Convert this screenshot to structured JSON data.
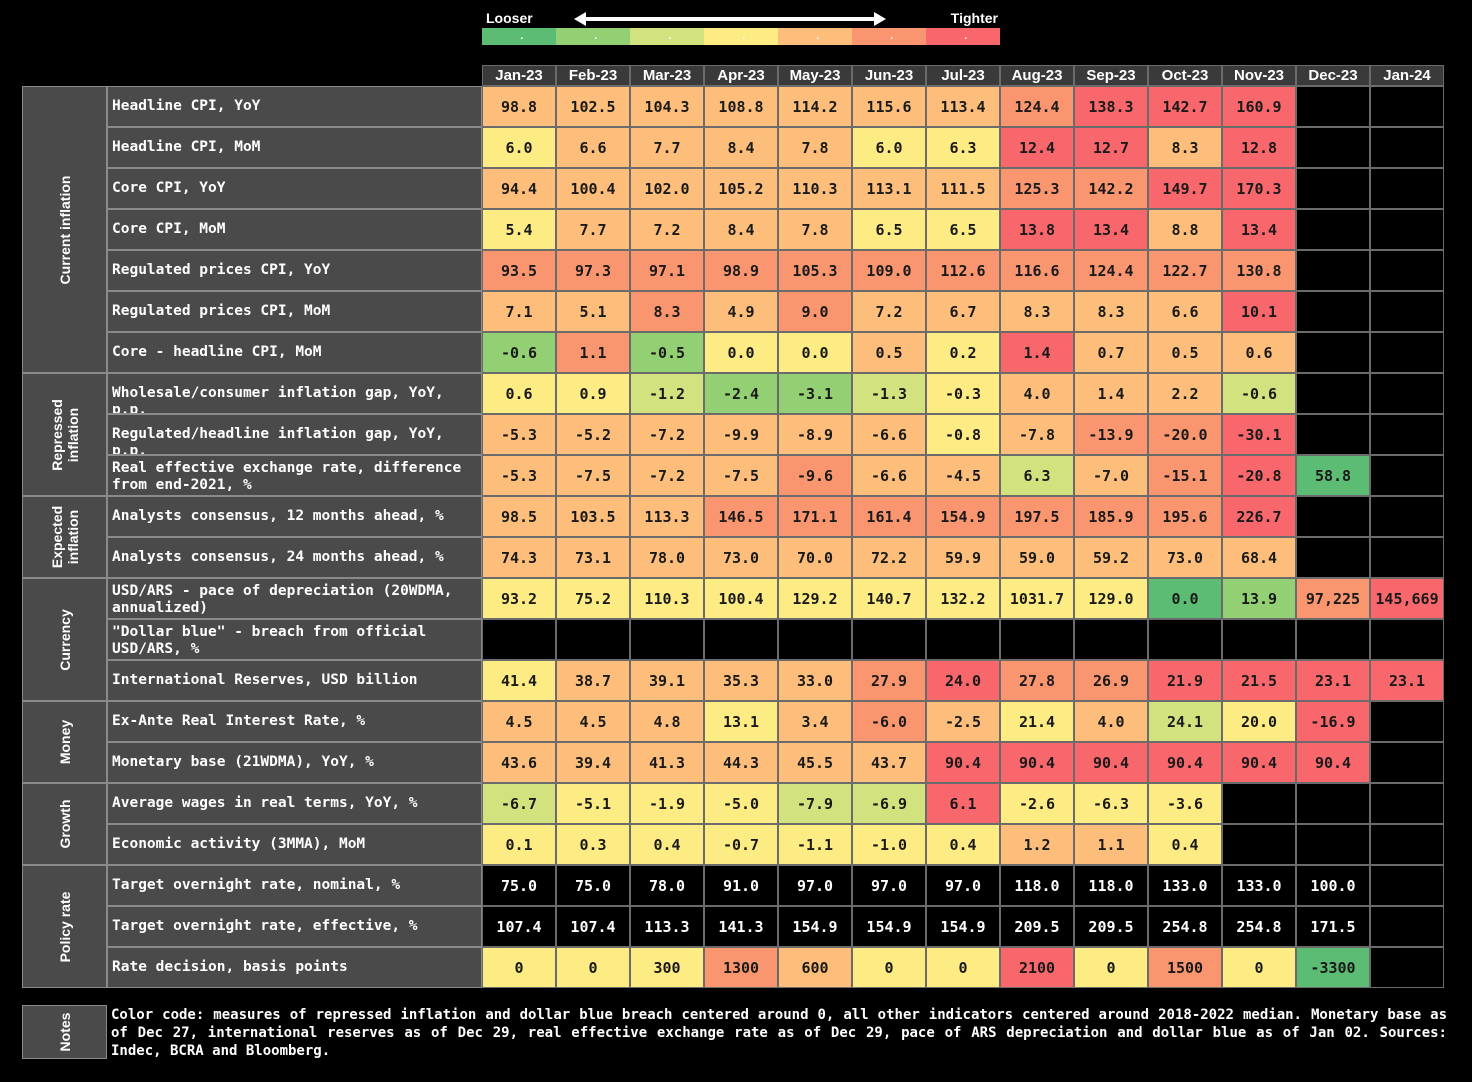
{
  "legend": {
    "looser": "Looser",
    "tighter": "Tighter",
    "colors": [
      "#5cbc74",
      "#93cf73",
      "#d1e27e",
      "#fdeb84",
      "#fcbe7a",
      "#f99670",
      "#f8676b"
    ]
  },
  "chart_data": {
    "type": "table",
    "columns": [
      "Jan-23",
      "Feb-23",
      "Mar-23",
      "Apr-23",
      "May-23",
      "Jun-23",
      "Jul-23",
      "Aug-23",
      "Sep-23",
      "Oct-23",
      "Nov-23",
      "Dec-23",
      "Jan-24"
    ],
    "groups": [
      {
        "name": "Current inflation",
        "rows": [
          {
            "label": "Headline CPI, YoY",
            "values": [
              "98.8",
              "102.5",
              "104.3",
              "108.8",
              "114.2",
              "115.6",
              "113.4",
              "124.4",
              "138.3",
              "142.7",
              "160.9",
              "",
              ""
            ],
            "colors": [
              4,
              4,
              4,
              4,
              4,
              4,
              4,
              5,
              6,
              6,
              6,
              -1,
              -1
            ]
          },
          {
            "label": "Headline CPI, MoM",
            "values": [
              "6.0",
              "6.6",
              "7.7",
              "8.4",
              "7.8",
              "6.0",
              "6.3",
              "12.4",
              "12.7",
              "8.3",
              "12.8",
              "",
              ""
            ],
            "colors": [
              3,
              4,
              4,
              4,
              4,
              3,
              3,
              6,
              6,
              4,
              6,
              -1,
              -1
            ]
          },
          {
            "label": "Core CPI, YoY",
            "values": [
              "94.4",
              "100.4",
              "102.0",
              "105.2",
              "110.3",
              "113.1",
              "111.5",
              "125.3",
              "142.2",
              "149.7",
              "170.3",
              "",
              ""
            ],
            "colors": [
              4,
              4,
              4,
              4,
              4,
              4,
              4,
              5,
              5,
              6,
              6,
              -1,
              -1
            ]
          },
          {
            "label": "Core CPI, MoM",
            "values": [
              "5.4",
              "7.7",
              "7.2",
              "8.4",
              "7.8",
              "6.5",
              "6.5",
              "13.8",
              "13.4",
              "8.8",
              "13.4",
              "",
              ""
            ],
            "colors": [
              3,
              4,
              4,
              4,
              4,
              3,
              3,
              6,
              6,
              4,
              6,
              -1,
              -1
            ]
          },
          {
            "label": "Regulated prices CPI, YoY",
            "values": [
              "93.5",
              "97.3",
              "97.1",
              "98.9",
              "105.3",
              "109.0",
              "112.6",
              "116.6",
              "124.4",
              "122.7",
              "130.8",
              "",
              ""
            ],
            "colors": [
              5,
              5,
              5,
              5,
              5,
              5,
              5,
              5,
              5,
              5,
              5,
              -1,
              -1
            ]
          },
          {
            "label": "Regulated prices CPI, MoM",
            "values": [
              "7.1",
              "5.1",
              "8.3",
              "4.9",
              "9.0",
              "7.2",
              "6.7",
              "8.3",
              "8.3",
              "6.6",
              "10.1",
              "",
              ""
            ],
            "colors": [
              4,
              4,
              5,
              4,
              5,
              4,
              4,
              4,
              4,
              4,
              6,
              -1,
              -1
            ]
          },
          {
            "label": "Core - headline CPI, MoM",
            "values": [
              "-0.6",
              "1.1",
              "-0.5",
              "0.0",
              "0.0",
              "0.5",
              "0.2",
              "1.4",
              "0.7",
              "0.5",
              "0.6",
              "",
              ""
            ],
            "colors": [
              1,
              5,
              1,
              3,
              3,
              4,
              3,
              6,
              4,
              4,
              4,
              -1,
              -1
            ]
          }
        ]
      },
      {
        "name": "Repressed inflation",
        "rows": [
          {
            "label": "Wholesale/consumer inflation gap, YoY, p.p.",
            "values": [
              "0.6",
              "0.9",
              "-1.2",
              "-2.4",
              "-3.1",
              "-1.3",
              "-0.3",
              "4.0",
              "1.4",
              "2.2",
              "-0.6",
              "",
              ""
            ],
            "colors": [
              3,
              3,
              2,
              1,
              1,
              2,
              3,
              4,
              4,
              4,
              2,
              -1,
              -1
            ]
          },
          {
            "label": "Regulated/headline inflation gap, YoY, p.p.",
            "values": [
              "-5.3",
              "-5.2",
              "-7.2",
              "-9.9",
              "-8.9",
              "-6.6",
              "-0.8",
              "-7.8",
              "-13.9",
              "-20.0",
              "-30.1",
              "",
              ""
            ],
            "colors": [
              4,
              4,
              4,
              4,
              4,
              4,
              3,
              4,
              5,
              5,
              6,
              -1,
              -1
            ]
          },
          {
            "label": "Real effective exchange rate, difference from end-2021, %",
            "values": [
              "-5.3",
              "-7.5",
              "-7.2",
              "-7.5",
              "-9.6",
              "-6.6",
              "-4.5",
              "6.3",
              "-7.0",
              "-15.1",
              "-20.8",
              "58.8",
              ""
            ],
            "colors": [
              4,
              4,
              4,
              4,
              5,
              4,
              4,
              2,
              4,
              5,
              6,
              0,
              -1
            ]
          }
        ]
      },
      {
        "name": "Expected inflation",
        "rows": [
          {
            "label": "Analysts consensus, 12 months ahead, %",
            "values": [
              "98.5",
              "103.5",
              "113.3",
              "146.5",
              "171.1",
              "161.4",
              "154.9",
              "197.5",
              "185.9",
              "195.6",
              "226.7",
              "",
              ""
            ],
            "colors": [
              4,
              4,
              4,
              5,
              5,
              5,
              5,
              5,
              5,
              5,
              6,
              -1,
              -1
            ]
          },
          {
            "label": "Analysts consensus, 24 months ahead, %",
            "values": [
              "74.3",
              "73.1",
              "78.0",
              "73.0",
              "70.0",
              "72.2",
              "59.9",
              "59.0",
              "59.2",
              "73.0",
              "68.4",
              "",
              ""
            ],
            "colors": [
              4,
              4,
              4,
              4,
              4,
              4,
              4,
              4,
              4,
              4,
              4,
              -1,
              -1
            ]
          }
        ]
      },
      {
        "name": "Currency",
        "rows": [
          {
            "label": "USD/ARS - pace of depreciation (20WDMA, annualized)",
            "values": [
              "93.2",
              "75.2",
              "110.3",
              "100.4",
              "129.2",
              "140.7",
              "132.2",
              "1031.7",
              "129.0",
              "0.0",
              "13.9",
              "97,225",
              "145,669"
            ],
            "colors": [
              3,
              3,
              3,
              3,
              3,
              3,
              3,
              3,
              3,
              0,
              1,
              5,
              6
            ]
          },
          {
            "label": "\"Dollar blue\" - breach from official USD/ARS, %",
            "values": [
              "",
              "",
              "",
              "",
              "",
              "",
              "",
              "",
              "",
              "",
              "",
              "",
              ""
            ],
            "colors": [
              -1,
              -1,
              -1,
              -1,
              -1,
              -1,
              -1,
              -1,
              -1,
              -1,
              -1,
              -1,
              -1
            ]
          },
          {
            "label": "International Reserves, USD billion",
            "values": [
              "41.4",
              "38.7",
              "39.1",
              "35.3",
              "33.0",
              "27.9",
              "24.0",
              "27.8",
              "26.9",
              "21.9",
              "21.5",
              "23.1",
              "23.1"
            ],
            "colors": [
              3,
              4,
              4,
              4,
              4,
              5,
              6,
              5,
              5,
              6,
              6,
              6,
              6
            ]
          }
        ]
      },
      {
        "name": "Money",
        "rows": [
          {
            "label": "Ex-Ante Real Interest Rate, %",
            "values": [
              "4.5",
              "4.5",
              "4.8",
              "13.1",
              "3.4",
              "-6.0",
              "-2.5",
              "21.4",
              "4.0",
              "24.1",
              "20.0",
              "-16.9",
              ""
            ],
            "colors": [
              4,
              4,
              4,
              3,
              4,
              5,
              4,
              3,
              4,
              2,
              3,
              6,
              -1
            ]
          },
          {
            "label": "Monetary base (21WDMA), YoY, %",
            "values": [
              "43.6",
              "39.4",
              "41.3",
              "44.3",
              "45.5",
              "43.7",
              "90.4",
              "90.4",
              "90.4",
              "90.4",
              "90.4",
              "90.4",
              ""
            ],
            "colors": [
              4,
              4,
              4,
              4,
              4,
              4,
              6,
              6,
              6,
              6,
              6,
              6,
              -1
            ]
          }
        ]
      },
      {
        "name": "Growth",
        "rows": [
          {
            "label": "Average wages in real terms, YoY, %",
            "values": [
              "-6.7",
              "-5.1",
              "-1.9",
              "-5.0",
              "-7.9",
              "-6.9",
              "6.1",
              "-2.6",
              "-6.3",
              "-3.6",
              "",
              "",
              ""
            ],
            "colors": [
              2,
              3,
              3,
              3,
              2,
              2,
              6,
              3,
              3,
              3,
              -1,
              -1,
              -1
            ]
          },
          {
            "label": "Economic activity (3MMA), MoM",
            "values": [
              "0.1",
              "0.3",
              "0.4",
              "-0.7",
              "-1.1",
              "-1.0",
              "0.4",
              "1.2",
              "1.1",
              "0.4",
              "",
              "",
              ""
            ],
            "colors": [
              3,
              3,
              3,
              3,
              3,
              3,
              3,
              4,
              4,
              3,
              -1,
              -1,
              -1
            ]
          }
        ]
      },
      {
        "name": "Policy rate",
        "rows": [
          {
            "label": "Target overnight rate, nominal, %",
            "values": [
              "75.0",
              "75.0",
              "78.0",
              "91.0",
              "97.0",
              "97.0",
              "97.0",
              "118.0",
              "118.0",
              "133.0",
              "133.0",
              "100.0",
              ""
            ],
            "colors": [
              -2,
              -2,
              -2,
              -2,
              -2,
              -2,
              -2,
              -2,
              -2,
              -2,
              -2,
              -2,
              -1
            ]
          },
          {
            "label": "Target overnight rate, effective, %",
            "values": [
              "107.4",
              "107.4",
              "113.3",
              "141.3",
              "154.9",
              "154.9",
              "154.9",
              "209.5",
              "209.5",
              "254.8",
              "254.8",
              "171.5",
              ""
            ],
            "colors": [
              -2,
              -2,
              -2,
              -2,
              -2,
              -2,
              -2,
              -2,
              -2,
              -2,
              -2,
              -2,
              -1
            ]
          },
          {
            "label": "Rate decision, basis points",
            "values": [
              "0",
              "0",
              "300",
              "1300",
              "600",
              "0",
              "0",
              "2100",
              "0",
              "1500",
              "0",
              "-3300",
              ""
            ],
            "colors": [
              3,
              3,
              3,
              5,
              4,
              3,
              3,
              6,
              3,
              5,
              3,
              0,
              -1
            ]
          }
        ]
      }
    ]
  },
  "notes": {
    "label": "Notes",
    "text": "Color code: measures of repressed inflation and dollar blue breach centered around 0, all other indicators centered around 2018-2022 median. Monetary base as of Dec 27, international reserves as of Dec 29, real effective exchange rate as of Dec 29, pace of ARS depreciation and dollar blue as of Jan 02. Sources: Indec, BCRA and Bloomberg."
  }
}
